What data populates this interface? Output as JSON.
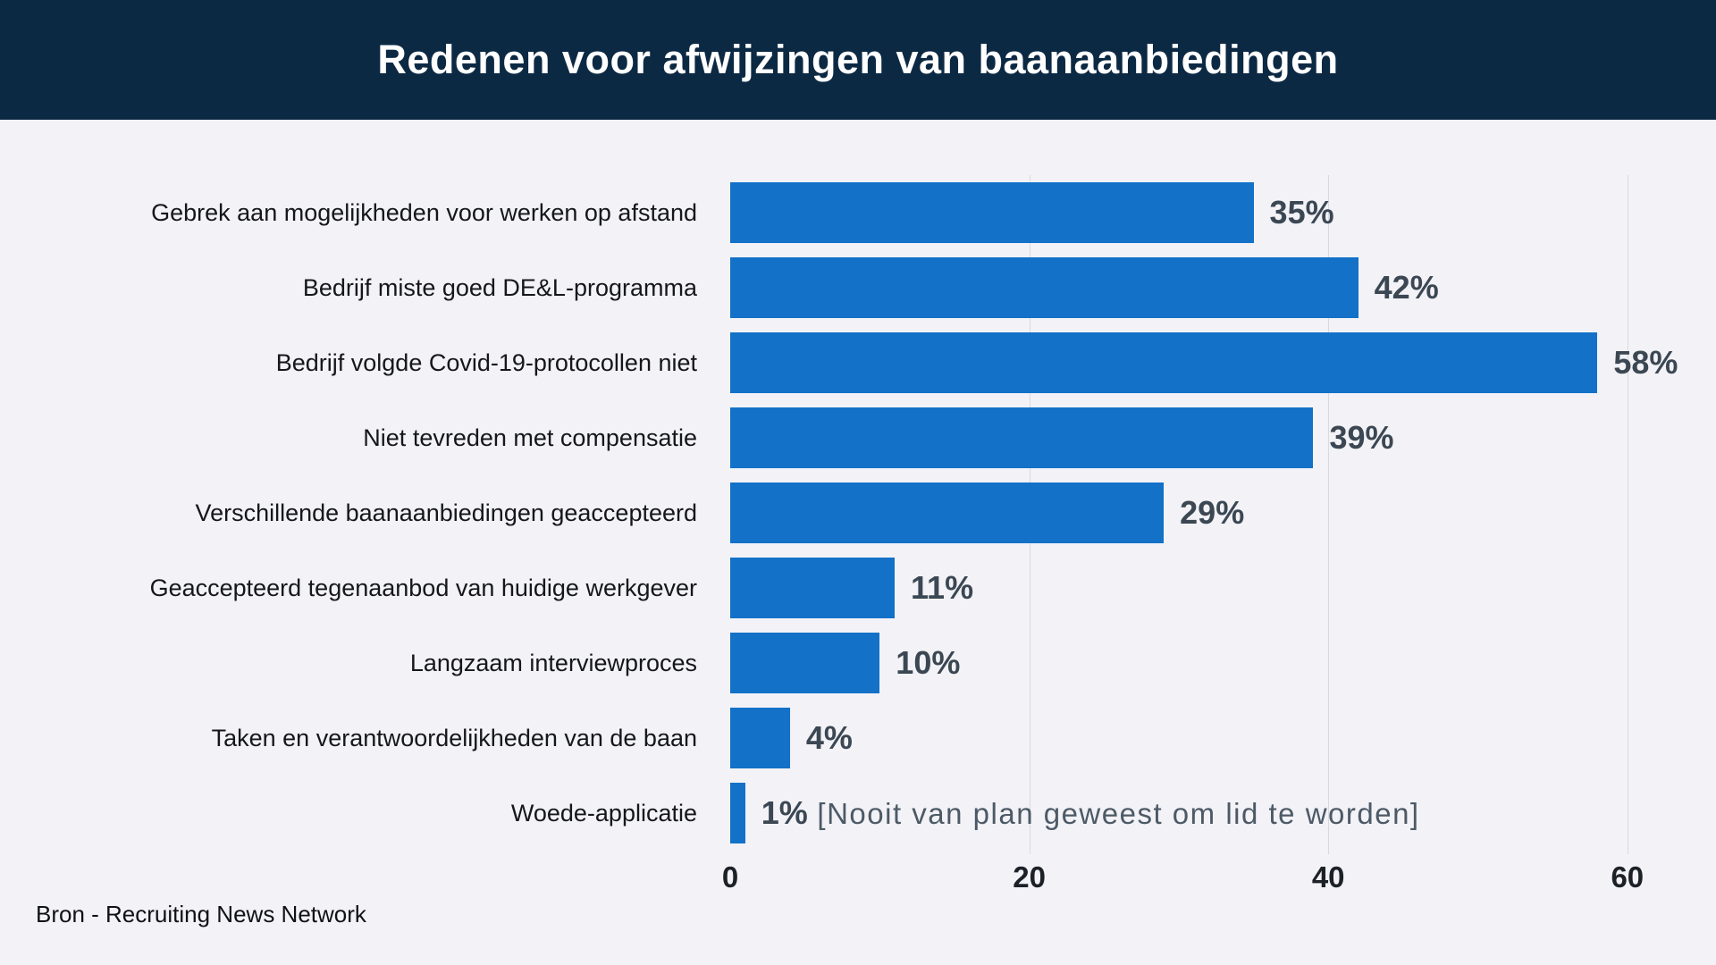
{
  "header": {
    "title": "Redenen voor afwijzingen van baanaanbiedingen"
  },
  "source_caption": "Bron - Recruiting News Network",
  "colors": {
    "header_background": "#0c2944",
    "page_background": "#f2f2f7",
    "bar": "#1371c8",
    "value_label": "#3b4752",
    "gridline": "#d9dade",
    "annotation": "#4d5a66"
  },
  "chart_data": {
    "type": "bar",
    "orientation": "horizontal",
    "title": "Redenen voor afwijzingen van baanaanbiedingen",
    "categories": [
      "Gebrek aan mogelijkheden voor werken op afstand",
      "Bedrijf miste goed DE&L-programma",
      "Bedrijf volgde Covid-19-protocollen niet",
      "Niet tevreden met compensatie",
      "Verschillende baanaanbiedingen geaccepteerd",
      "Geaccepteerd tegenaanbod van huidige werkgever",
      "Langzaam interviewproces",
      "Taken en verantwoordelijkheden van de baan",
      "Woede-applicatie"
    ],
    "values": [
      35,
      42,
      58,
      39,
      29,
      11,
      10,
      4,
      1
    ],
    "value_labels": [
      "35%",
      "42%",
      "58%",
      "39%",
      "29%",
      "11%",
      "10%",
      "4%",
      "1%"
    ],
    "annotation": {
      "row": 8,
      "text": "[Nooit van plan geweest om lid te worden]"
    },
    "xlabel": "",
    "ylabel": "",
    "x_ticks": [
      0,
      20,
      40,
      60
    ],
    "x_tick_labels": [
      "0",
      "20",
      "40",
      "60"
    ],
    "xlim": [
      0,
      62
    ],
    "grid": "vertical",
    "legend": "none"
  }
}
